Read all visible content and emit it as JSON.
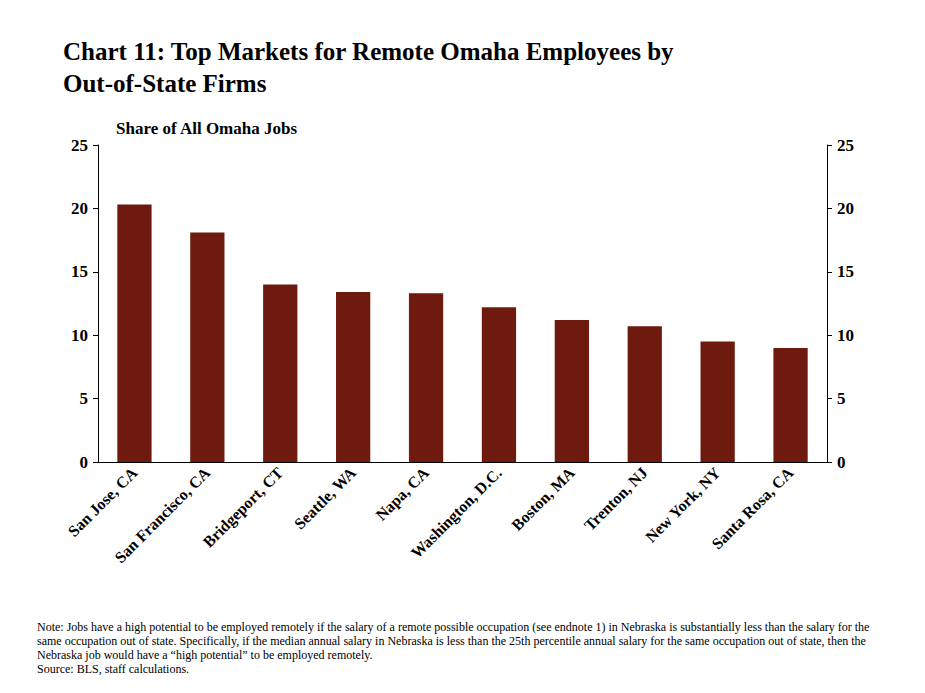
{
  "chart_data": {
    "type": "bar",
    "title": "Chart 11: Top Markets for Remote Omaha Employees by Out-of-State Firms",
    "y_label": "Share of All Omaha Jobs",
    "categories": [
      "San Jose, CA",
      "San Francisco, CA",
      "Bridgeport, CT",
      "Seattle, WA",
      "Napa, CA",
      "Washington, D.C.",
      "Boston, MA",
      "Trenton, NJ",
      "New York, NY",
      "Santa Rosa, CA"
    ],
    "values": [
      20.3,
      18.1,
      14.0,
      13.4,
      13.3,
      12.2,
      11.2,
      10.7,
      9.5,
      9.0
    ],
    "color": "#6e1a0f",
    "ylim": [
      0,
      25
    ],
    "yticks": [
      0,
      5,
      10,
      15,
      20,
      25
    ],
    "y2lim": [
      0,
      25
    ],
    "y2ticks": [
      0,
      5,
      10,
      15,
      20,
      25
    ],
    "grid": false,
    "note": "Note: Jobs have a high potential to be employed remotely if the salary of a remote possible occupation (see endnote 1) in Nebraska is substantially less than the salary for the same occupation out of state. Specifically, if the median annual salary in Nebraska is less than the 25th percentile annual salary for the same occupation out of state, then the Nebraska job would have a “high potential” to be employed remotely.",
    "source": "Source: BLS, staff calculations."
  }
}
